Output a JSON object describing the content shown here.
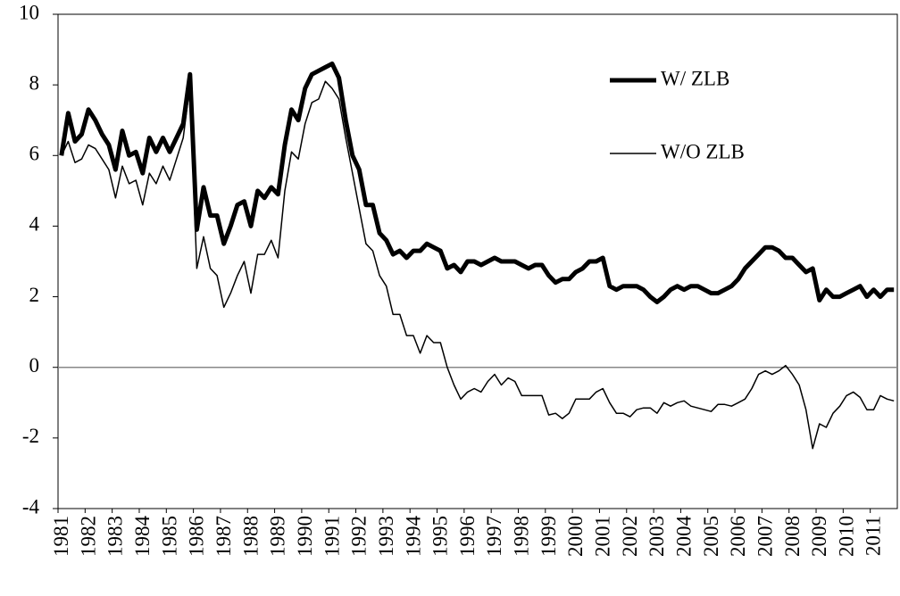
{
  "chart_data": {
    "type": "line",
    "categories": [
      "1981",
      null,
      null,
      null,
      "1982",
      null,
      null,
      null,
      "1983",
      null,
      null,
      null,
      "1984",
      null,
      null,
      null,
      "1985",
      null,
      null,
      null,
      "1986",
      null,
      null,
      null,
      "1987",
      null,
      null,
      null,
      "1988",
      null,
      null,
      null,
      "1989",
      null,
      null,
      null,
      "1990",
      null,
      null,
      null,
      "1991",
      null,
      null,
      null,
      "1992",
      null,
      null,
      null,
      "1993",
      null,
      null,
      null,
      "1994",
      null,
      null,
      null,
      "1995",
      null,
      null,
      null,
      "1996",
      null,
      null,
      null,
      "1997",
      null,
      null,
      null,
      "1998",
      null,
      null,
      null,
      "1999",
      null,
      null,
      null,
      "2000",
      null,
      null,
      null,
      "2001",
      null,
      null,
      null,
      "2002",
      null,
      null,
      null,
      "2003",
      null,
      null,
      null,
      "2004",
      null,
      null,
      null,
      "2005",
      null,
      null,
      null,
      "2006",
      null,
      null,
      null,
      "2007",
      null,
      null,
      null,
      "2008",
      null,
      null,
      null,
      "2009",
      null,
      null,
      null,
      "2010",
      null,
      null,
      null,
      "2011",
      null,
      null,
      null
    ],
    "series": [
      {
        "name": "W/ ZLB",
        "color": "#000000",
        "linewidth": 5,
        "values": [
          6.0,
          7.2,
          6.4,
          6.6,
          7.3,
          7.0,
          6.6,
          6.3,
          5.6,
          6.7,
          6.0,
          6.1,
          5.5,
          6.5,
          6.1,
          6.5,
          6.1,
          6.5,
          6.9,
          8.3,
          3.9,
          5.1,
          4.3,
          4.3,
          3.5,
          4.0,
          4.6,
          4.7,
          4.0,
          5.0,
          4.8,
          5.1,
          4.9,
          6.3,
          7.3,
          7.0,
          7.9,
          8.3,
          8.4,
          8.5,
          8.6,
          8.2,
          7.0,
          6.0,
          5.6,
          4.6,
          4.6,
          3.8,
          3.6,
          3.2,
          3.3,
          3.1,
          3.3,
          3.3,
          3.5,
          3.4,
          3.3,
          2.8,
          2.9,
          2.7,
          3.0,
          3.0,
          2.9,
          3.0,
          3.1,
          3.0,
          3.0,
          3.0,
          2.9,
          2.8,
          2.9,
          2.9,
          2.6,
          2.4,
          2.5,
          2.5,
          2.7,
          2.8,
          3.0,
          3.0,
          3.1,
          2.3,
          2.2,
          2.3,
          2.3,
          2.3,
          2.2,
          2.0,
          1.85,
          2.0,
          2.2,
          2.3,
          2.2,
          2.3,
          2.3,
          2.2,
          2.1,
          2.1,
          2.2,
          2.3,
          2.5,
          2.8,
          3.0,
          3.2,
          3.4,
          3.4,
          3.3,
          3.1,
          3.1,
          2.9,
          2.7,
          2.8,
          1.9,
          2.2,
          2.0,
          2.0,
          2.1,
          2.2,
          2.3,
          2.0,
          2.2,
          2.0,
          2.2,
          2.2
        ]
      },
      {
        "name": "W/O ZLB",
        "color": "#000000",
        "linewidth": 1.5,
        "values": [
          6.0,
          6.4,
          5.8,
          5.9,
          6.3,
          6.2,
          5.9,
          5.6,
          4.8,
          5.7,
          5.2,
          5.3,
          4.6,
          5.5,
          5.2,
          5.7,
          5.3,
          5.9,
          6.5,
          8.0,
          2.8,
          3.7,
          2.8,
          2.6,
          1.7,
          2.1,
          2.6,
          3.0,
          2.1,
          3.2,
          3.2,
          3.6,
          3.1,
          5.0,
          6.1,
          5.9,
          6.9,
          7.5,
          7.6,
          8.1,
          7.9,
          7.6,
          6.5,
          5.5,
          4.5,
          3.5,
          3.3,
          2.6,
          2.3,
          1.5,
          1.5,
          0.9,
          0.9,
          0.4,
          0.9,
          0.7,
          0.7,
          0.0,
          -0.5,
          -0.9,
          -0.7,
          -0.6,
          -0.7,
          -0.4,
          -0.2,
          -0.5,
          -0.3,
          -0.4,
          -0.8,
          -0.8,
          -0.8,
          -0.8,
          -1.35,
          -1.3,
          -1.45,
          -1.3,
          -0.9,
          -0.9,
          -0.9,
          -0.7,
          -0.6,
          -1.0,
          -1.3,
          -1.3,
          -1.4,
          -1.2,
          -1.15,
          -1.15,
          -1.3,
          -1.0,
          -1.1,
          -1.0,
          -0.95,
          -1.1,
          -1.15,
          -1.2,
          -1.25,
          -1.05,
          -1.05,
          -1.1,
          -1.0,
          -0.9,
          -0.6,
          -0.2,
          -0.1,
          -0.2,
          -0.1,
          0.05,
          -0.2,
          -0.5,
          -1.2,
          -2.3,
          -1.6,
          -1.7,
          -1.3,
          -1.1,
          -0.8,
          -0.7,
          -0.85,
          -1.2,
          -1.2,
          -0.8,
          -0.9,
          -0.95
        ]
      }
    ],
    "ylim": [
      -4,
      10
    ],
    "yticks": [
      -4,
      -2,
      0,
      2,
      4,
      6,
      8,
      10
    ],
    "zero_line": true,
    "legend": "upper right"
  }
}
